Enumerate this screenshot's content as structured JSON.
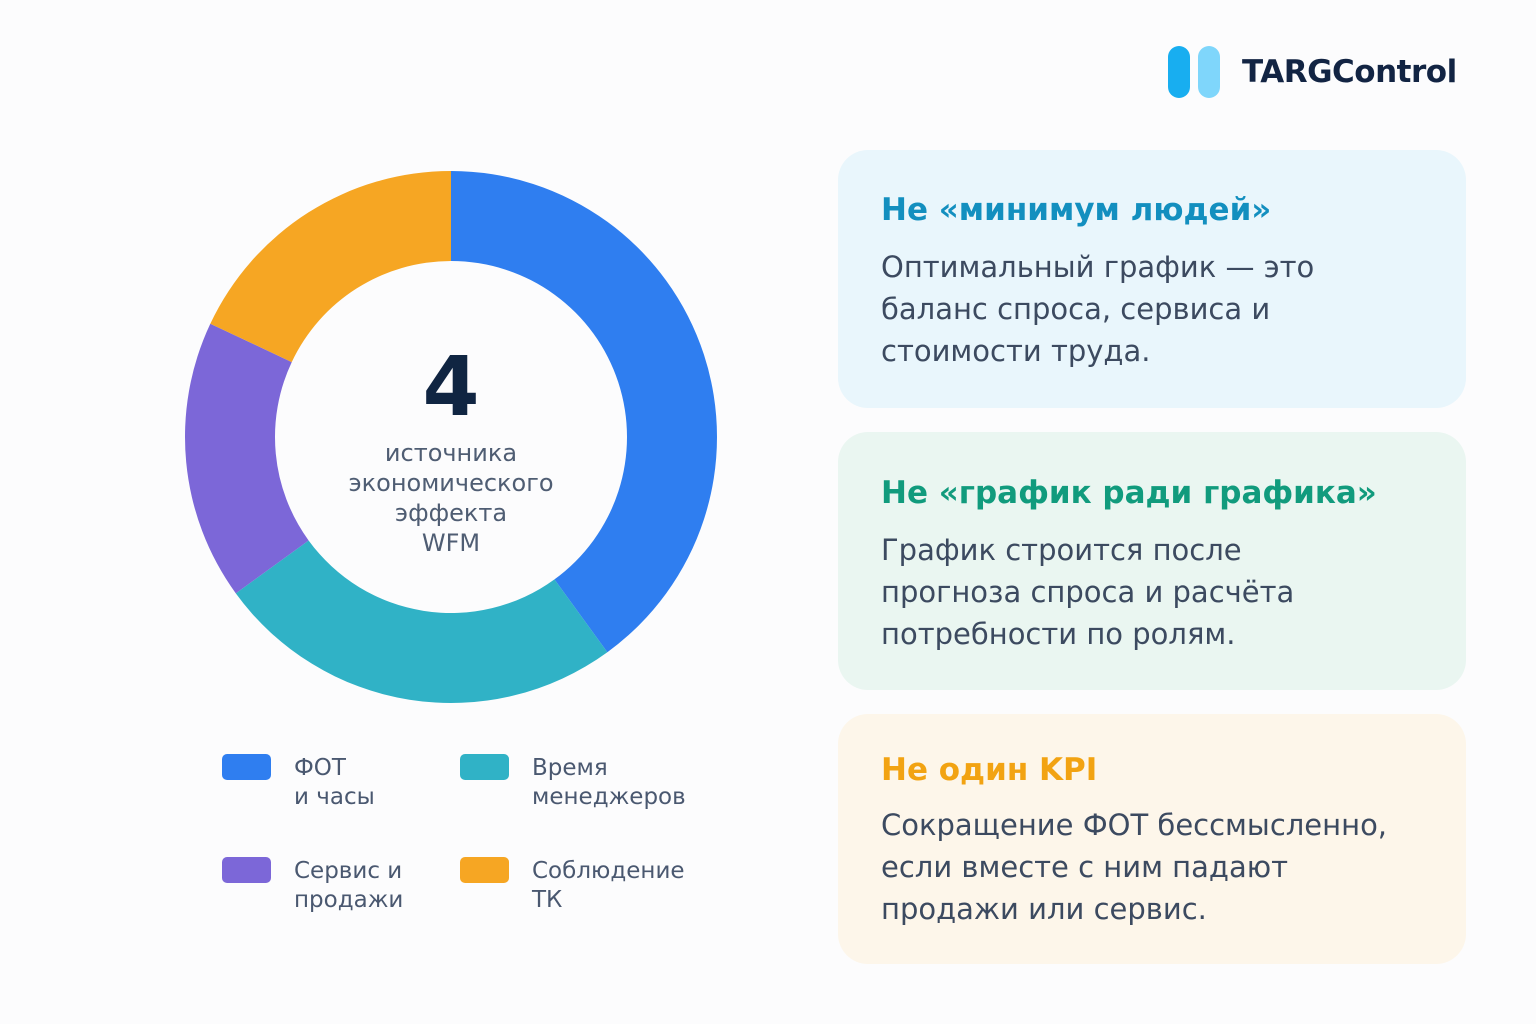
{
  "brand": {
    "name": "TARGControl",
    "mark_colors": [
      "#18aef0",
      "#7fd6fb"
    ]
  },
  "center": {
    "number": "4",
    "lines": [
      "источника",
      "экономического",
      "эффекта",
      "WFM"
    ]
  },
  "chart_data": {
    "type": "pie",
    "style": "donut",
    "start_angle_deg": 0,
    "categories": [
      "ФОТ и часы",
      "Время менеджеров",
      "Сервис и продажи",
      "Соблюдение ТК"
    ],
    "values": [
      40,
      25,
      17,
      18
    ],
    "colors": [
      "#2f7ef0",
      "#30b2c6",
      "#7c67d8",
      "#f6a623"
    ],
    "legend": [
      {
        "lines": [
          "ФОТ",
          "и часы"
        ],
        "color": "#2f7ef0"
      },
      {
        "lines": [
          "Время",
          "менеджеров"
        ],
        "color": "#30b2c6"
      },
      {
        "lines": [
          "Сервис и",
          "продажи"
        ],
        "color": "#7c67d8"
      },
      {
        "lines": [
          "Соблюдение",
          "ТК"
        ],
        "color": "#f6a623"
      }
    ],
    "legend_position": "bottom"
  },
  "cards": [
    {
      "title": "Не «минимум людей»",
      "title_color": "#138fbf",
      "bg": "#e9f6fc",
      "body": [
        "Оптимальный график — это",
        "баланс спроса, сервиса и",
        "стоимости труда."
      ]
    },
    {
      "title": "Не «график ради графика»",
      "title_color": "#119b7d",
      "bg": "#eaf6f1",
      "body": [
        "График строится после",
        "прогноза спроса и расчёта",
        "потребности по ролям."
      ]
    },
    {
      "title": "Не один KPI",
      "title_color": "#f2a312",
      "bg": "#fdf6ea",
      "body": [
        "Сокращение ФОТ бессмысленно,",
        "если вместе с ним падают",
        "продажи или сервис."
      ]
    }
  ]
}
